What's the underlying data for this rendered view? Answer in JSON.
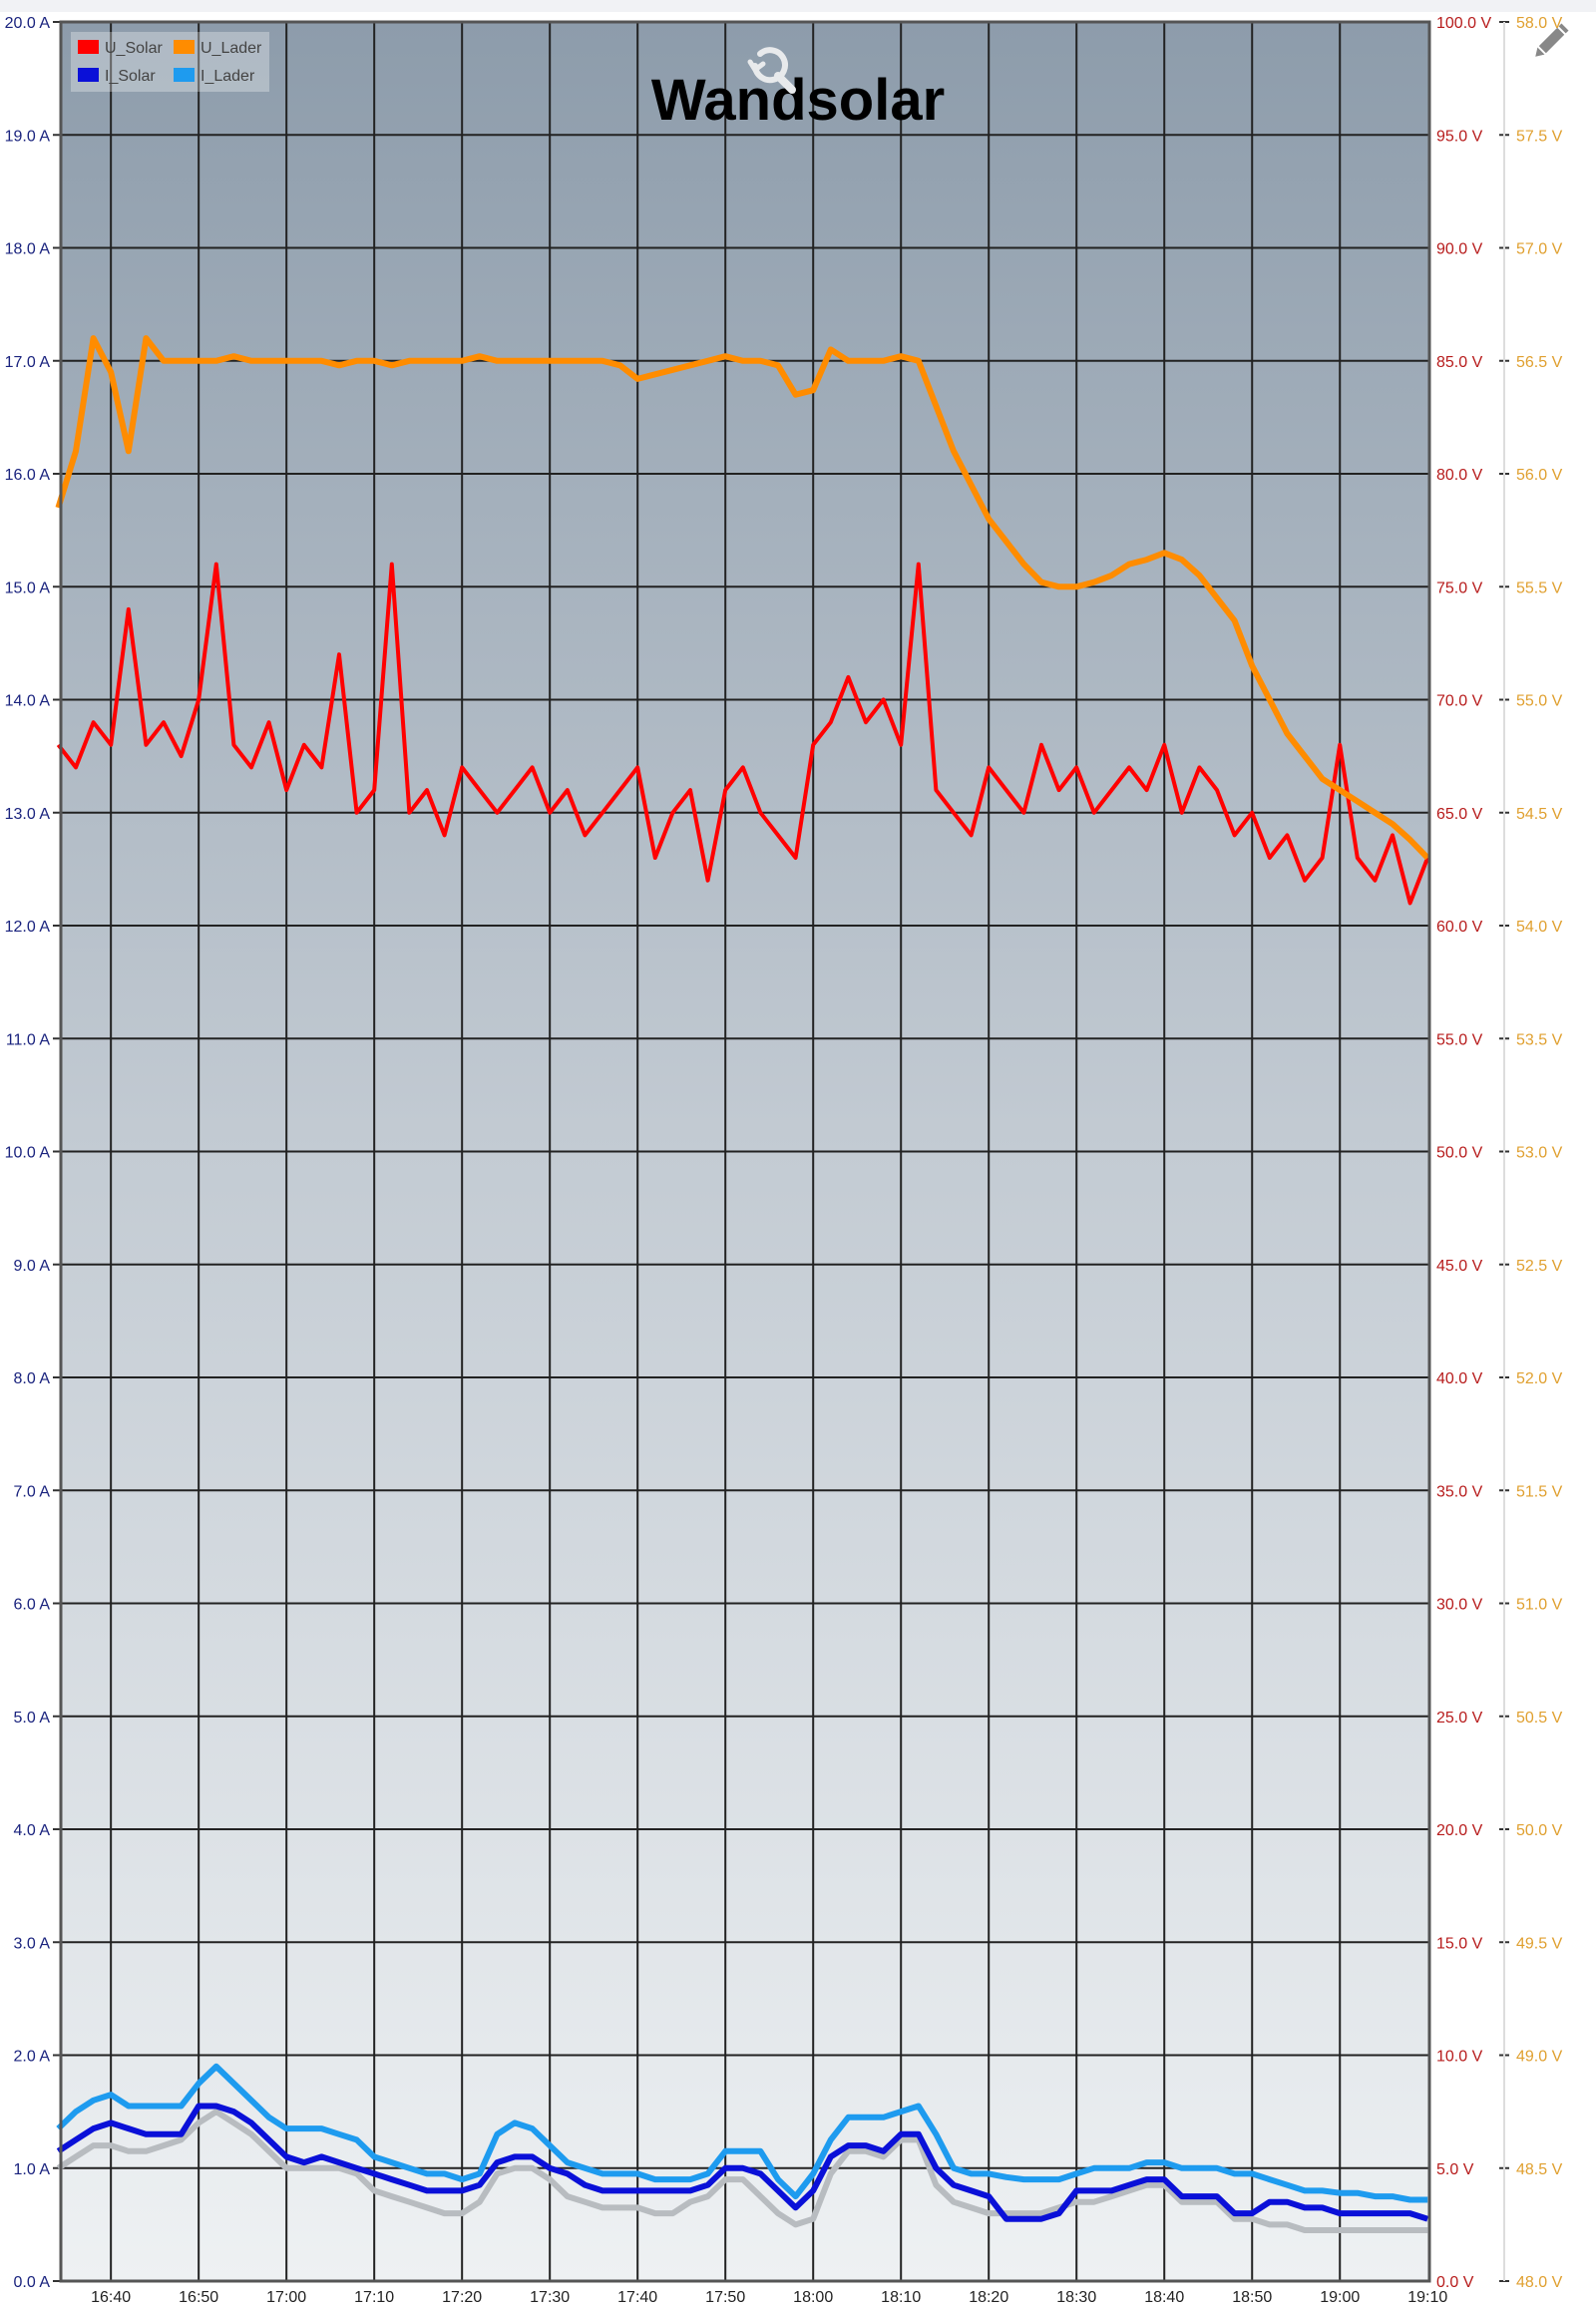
{
  "chart_data": {
    "type": "line",
    "title": "Wandsolar",
    "x": [
      "16:34",
      "16:36",
      "16:38",
      "16:40",
      "16:42",
      "16:44",
      "16:46",
      "16:48",
      "16:50",
      "16:52",
      "16:54",
      "16:56",
      "16:58",
      "17:00",
      "17:02",
      "17:04",
      "17:06",
      "17:08",
      "17:10",
      "17:12",
      "17:14",
      "17:16",
      "17:18",
      "17:20",
      "17:22",
      "17:24",
      "17:26",
      "17:28",
      "17:30",
      "17:32",
      "17:34",
      "17:36",
      "17:38",
      "17:40",
      "17:42",
      "17:44",
      "17:46",
      "17:48",
      "17:50",
      "17:52",
      "17:54",
      "17:56",
      "17:58",
      "18:00",
      "18:02",
      "18:04",
      "18:06",
      "18:08",
      "18:10",
      "18:12",
      "18:14",
      "18:16",
      "18:18",
      "18:20",
      "18:22",
      "18:24",
      "18:26",
      "18:28",
      "18:30",
      "18:32",
      "18:34",
      "18:36",
      "18:38",
      "18:40",
      "18:42",
      "18:44",
      "18:46",
      "18:48",
      "18:50",
      "18:52",
      "18:54",
      "18:56",
      "18:58",
      "19:00",
      "19:02",
      "19:04",
      "19:06",
      "19:08",
      "19:10"
    ],
    "xlim": [
      "16:34",
      "19:10"
    ],
    "x_ticks": [
      "16:40",
      "16:50",
      "17:00",
      "17:10",
      "17:20",
      "17:30",
      "17:40",
      "17:50",
      "18:00",
      "18:10",
      "18:20",
      "18:30",
      "18:40",
      "18:50",
      "19:00",
      "19:10"
    ],
    "axes": {
      "current": {
        "side": "left",
        "range": [
          0,
          20
        ],
        "step": 1,
        "unit": "A",
        "color": "#1a237e"
      },
      "voltage_solar": {
        "side": "right",
        "range": [
          0,
          100
        ],
        "step": 5,
        "unit": "V",
        "color": "#b71c1c"
      },
      "voltage_lader": {
        "side": "right-outer",
        "range": [
          48,
          58
        ],
        "step": 0.5,
        "unit": "V",
        "color": "#e0a030"
      }
    },
    "grid": true,
    "legend_position": "top-left",
    "series": [
      {
        "name": "U_Solar",
        "axis": "voltage_solar",
        "color": "#ff0000",
        "values": [
          68,
          67,
          69,
          68,
          74,
          68,
          69,
          67.5,
          70,
          76,
          68,
          67,
          69,
          66,
          68,
          67,
          72,
          65,
          66,
          76,
          65,
          66,
          64,
          67,
          66,
          65,
          66,
          67,
          65,
          66,
          64,
          65,
          66,
          67,
          63,
          65,
          66,
          62,
          66,
          67,
          65,
          64,
          63,
          68,
          69,
          71,
          69,
          70,
          68,
          76,
          66,
          65,
          64,
          67,
          66,
          65,
          68,
          66,
          67,
          65,
          66,
          67,
          66,
          68,
          65,
          67,
          66,
          64,
          65,
          63,
          64,
          62,
          63,
          68,
          63,
          62,
          64,
          61,
          63
        ]
      },
      {
        "name": "U_Lader",
        "axis": "voltage_lader",
        "color": "#ff8c00",
        "values": [
          55.85,
          56.1,
          56.6,
          56.45,
          56.1,
          56.6,
          56.5,
          56.5,
          56.5,
          56.5,
          56.52,
          56.5,
          56.5,
          56.5,
          56.5,
          56.5,
          56.48,
          56.5,
          56.5,
          56.48,
          56.5,
          56.5,
          56.5,
          56.5,
          56.52,
          56.5,
          56.5,
          56.5,
          56.5,
          56.5,
          56.5,
          56.5,
          56.48,
          56.42,
          56.44,
          56.46,
          56.48,
          56.5,
          56.52,
          56.5,
          56.5,
          56.48,
          56.35,
          56.37,
          56.55,
          56.5,
          56.5,
          56.5,
          56.52,
          56.5,
          56.3,
          56.1,
          55.95,
          55.8,
          55.7,
          55.6,
          55.52,
          55.5,
          55.5,
          55.52,
          55.55,
          55.6,
          55.62,
          55.65,
          55.62,
          55.55,
          55.45,
          55.35,
          55.15,
          55.0,
          54.85,
          54.75,
          54.65,
          54.6,
          54.55,
          54.5,
          54.45,
          54.38,
          54.3
        ]
      },
      {
        "axis": "current",
        "color": "#b8bcc0",
        "values": [
          1.0,
          1.1,
          1.2,
          1.2,
          1.15,
          1.15,
          1.2,
          1.25,
          1.4,
          1.5,
          1.4,
          1.3,
          1.15,
          1.0,
          1.0,
          1.0,
          1.0,
          0.95,
          0.8,
          0.75,
          0.7,
          0.65,
          0.6,
          0.6,
          0.7,
          0.95,
          1.0,
          1.0,
          0.9,
          0.75,
          0.7,
          0.65,
          0.65,
          0.65,
          0.6,
          0.6,
          0.7,
          0.75,
          0.9,
          0.9,
          0.75,
          0.6,
          0.5,
          0.55,
          0.95,
          1.15,
          1.15,
          1.1,
          1.25,
          1.25,
          0.85,
          0.7,
          0.65,
          0.6,
          0.6,
          0.6,
          0.6,
          0.65,
          0.7,
          0.7,
          0.75,
          0.8,
          0.85,
          0.85,
          0.7,
          0.7,
          0.7,
          0.55,
          0.55,
          0.5,
          0.5,
          0.45,
          0.45,
          0.45,
          0.45,
          0.45,
          0.45,
          0.45,
          0.45
        ]
      },
      {
        "name": "I_Lader",
        "axis": "current",
        "color": "#1e9bef",
        "values": [
          1.35,
          1.5,
          1.6,
          1.65,
          1.55,
          1.55,
          1.55,
          1.55,
          1.75,
          1.9,
          1.75,
          1.6,
          1.45,
          1.35,
          1.35,
          1.35,
          1.3,
          1.25,
          1.1,
          1.05,
          1.0,
          0.95,
          0.95,
          0.9,
          0.95,
          1.3,
          1.4,
          1.35,
          1.2,
          1.05,
          1.0,
          0.95,
          0.95,
          0.95,
          0.9,
          0.9,
          0.9,
          0.95,
          1.15,
          1.15,
          1.15,
          0.9,
          0.75,
          0.95,
          1.25,
          1.45,
          1.45,
          1.45,
          1.5,
          1.55,
          1.3,
          1.0,
          0.95,
          0.95,
          0.92,
          0.9,
          0.9,
          0.9,
          0.95,
          1.0,
          1.0,
          1.0,
          1.05,
          1.05,
          1.0,
          1.0,
          1.0,
          0.95,
          0.95,
          0.9,
          0.85,
          0.8,
          0.8,
          0.78,
          0.78,
          0.75,
          0.75,
          0.72,
          0.72
        ]
      },
      {
        "name": "I_Solar",
        "axis": "current",
        "color": "#0a10d8",
        "values": [
          1.15,
          1.25,
          1.35,
          1.4,
          1.35,
          1.3,
          1.3,
          1.3,
          1.55,
          1.55,
          1.5,
          1.4,
          1.25,
          1.1,
          1.05,
          1.1,
          1.05,
          1.0,
          0.95,
          0.9,
          0.85,
          0.8,
          0.8,
          0.8,
          0.85,
          1.05,
          1.1,
          1.1,
          1.0,
          0.95,
          0.85,
          0.8,
          0.8,
          0.8,
          0.8,
          0.8,
          0.8,
          0.85,
          1.0,
          1.0,
          0.95,
          0.8,
          0.65,
          0.8,
          1.1,
          1.2,
          1.2,
          1.15,
          1.3,
          1.3,
          1.0,
          0.85,
          0.8,
          0.75,
          0.55,
          0.55,
          0.55,
          0.6,
          0.8,
          0.8,
          0.8,
          0.85,
          0.9,
          0.9,
          0.75,
          0.75,
          0.75,
          0.6,
          0.6,
          0.7,
          0.7,
          0.65,
          0.65,
          0.6,
          0.6,
          0.6,
          0.6,
          0.6,
          0.55
        ]
      }
    ],
    "legend": [
      {
        "label": "U_Solar",
        "color": "#ff0000"
      },
      {
        "label": "U_Lader",
        "color": "#ff8c00"
      },
      {
        "label": "I_Solar",
        "color": "#0a10d8"
      },
      {
        "label": "I_Lader",
        "color": "#1e9bef"
      }
    ]
  },
  "toolbar": {
    "reset_zoom_icon": "zoom-reset-icon",
    "edit_icon": "pencil-icon"
  }
}
